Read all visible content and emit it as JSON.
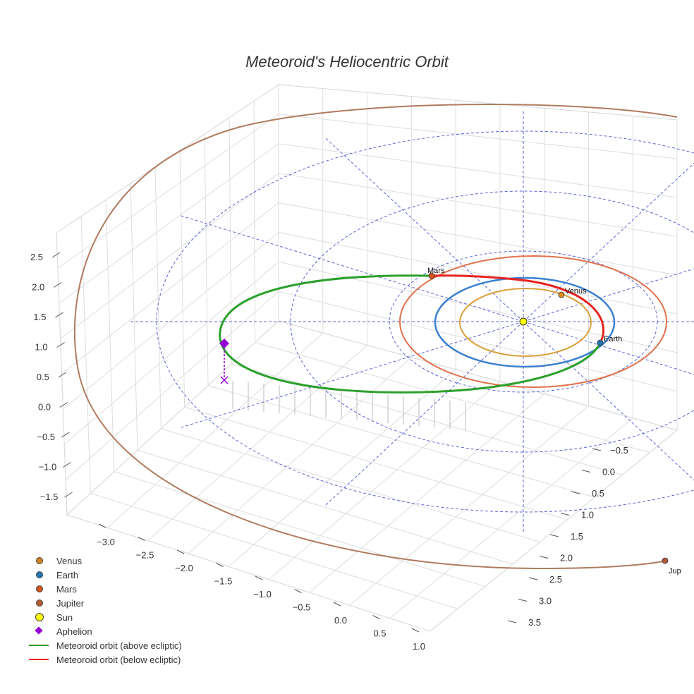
{
  "chart_data": {
    "type": "3d-line",
    "title": "Meteoroid's Heliocentric Orbit",
    "x_ticks": [
      "−3.0",
      "−2.5",
      "−2.0",
      "−1.5",
      "−1.0",
      "−0.5",
      "0.0",
      "0.5",
      "1.0"
    ],
    "y_ticks": [
      "−0.5",
      "0.0",
      "0.5",
      "1.0",
      "1.5",
      "2.0",
      "2.5",
      "3.0",
      "3.5"
    ],
    "z_ticks": [
      "2.5",
      "2.0",
      "1.5",
      "1.0",
      "0.5",
      "0.0",
      "−0.5",
      "−1.0",
      "−1.5"
    ],
    "planets": [
      {
        "name": "Venus",
        "label": "Venus",
        "color": "#e08a1e"
      },
      {
        "name": "Earth",
        "label": "Earth",
        "color": "#1f77b4"
      },
      {
        "name": "Mars",
        "label": "Mars",
        "color": "#d4541a"
      },
      {
        "name": "Jupiter",
        "label": "Jup",
        "color": "#b0593a"
      }
    ],
    "orbit_colors": {
      "venus": "#d9a03a",
      "earth": "#3b7fd0",
      "mars": "#e0714a",
      "jupiter": "#b07b5e",
      "grid": "#5b63d6"
    },
    "legend": [
      {
        "label": "Venus",
        "kind": "dot",
        "color": "#d2821e"
      },
      {
        "label": "Earth",
        "kind": "dot",
        "color": "#1f77b4"
      },
      {
        "label": "Mars",
        "kind": "dot",
        "color": "#d4541a"
      },
      {
        "label": "Jupiter",
        "kind": "dot",
        "color": "#b35a30"
      },
      {
        "label": "Sun",
        "kind": "bigdot",
        "color": "#ffff00"
      },
      {
        "label": "Aphelion",
        "kind": "diamond",
        "color": "#9400d3"
      },
      {
        "label": "Meteoroid orbit (above ecliptic)",
        "kind": "line",
        "color": "#2ca02c"
      },
      {
        "label": "Meteoroid orbit (below ecliptic)",
        "kind": "line",
        "color": "#e8231f"
      }
    ]
  }
}
